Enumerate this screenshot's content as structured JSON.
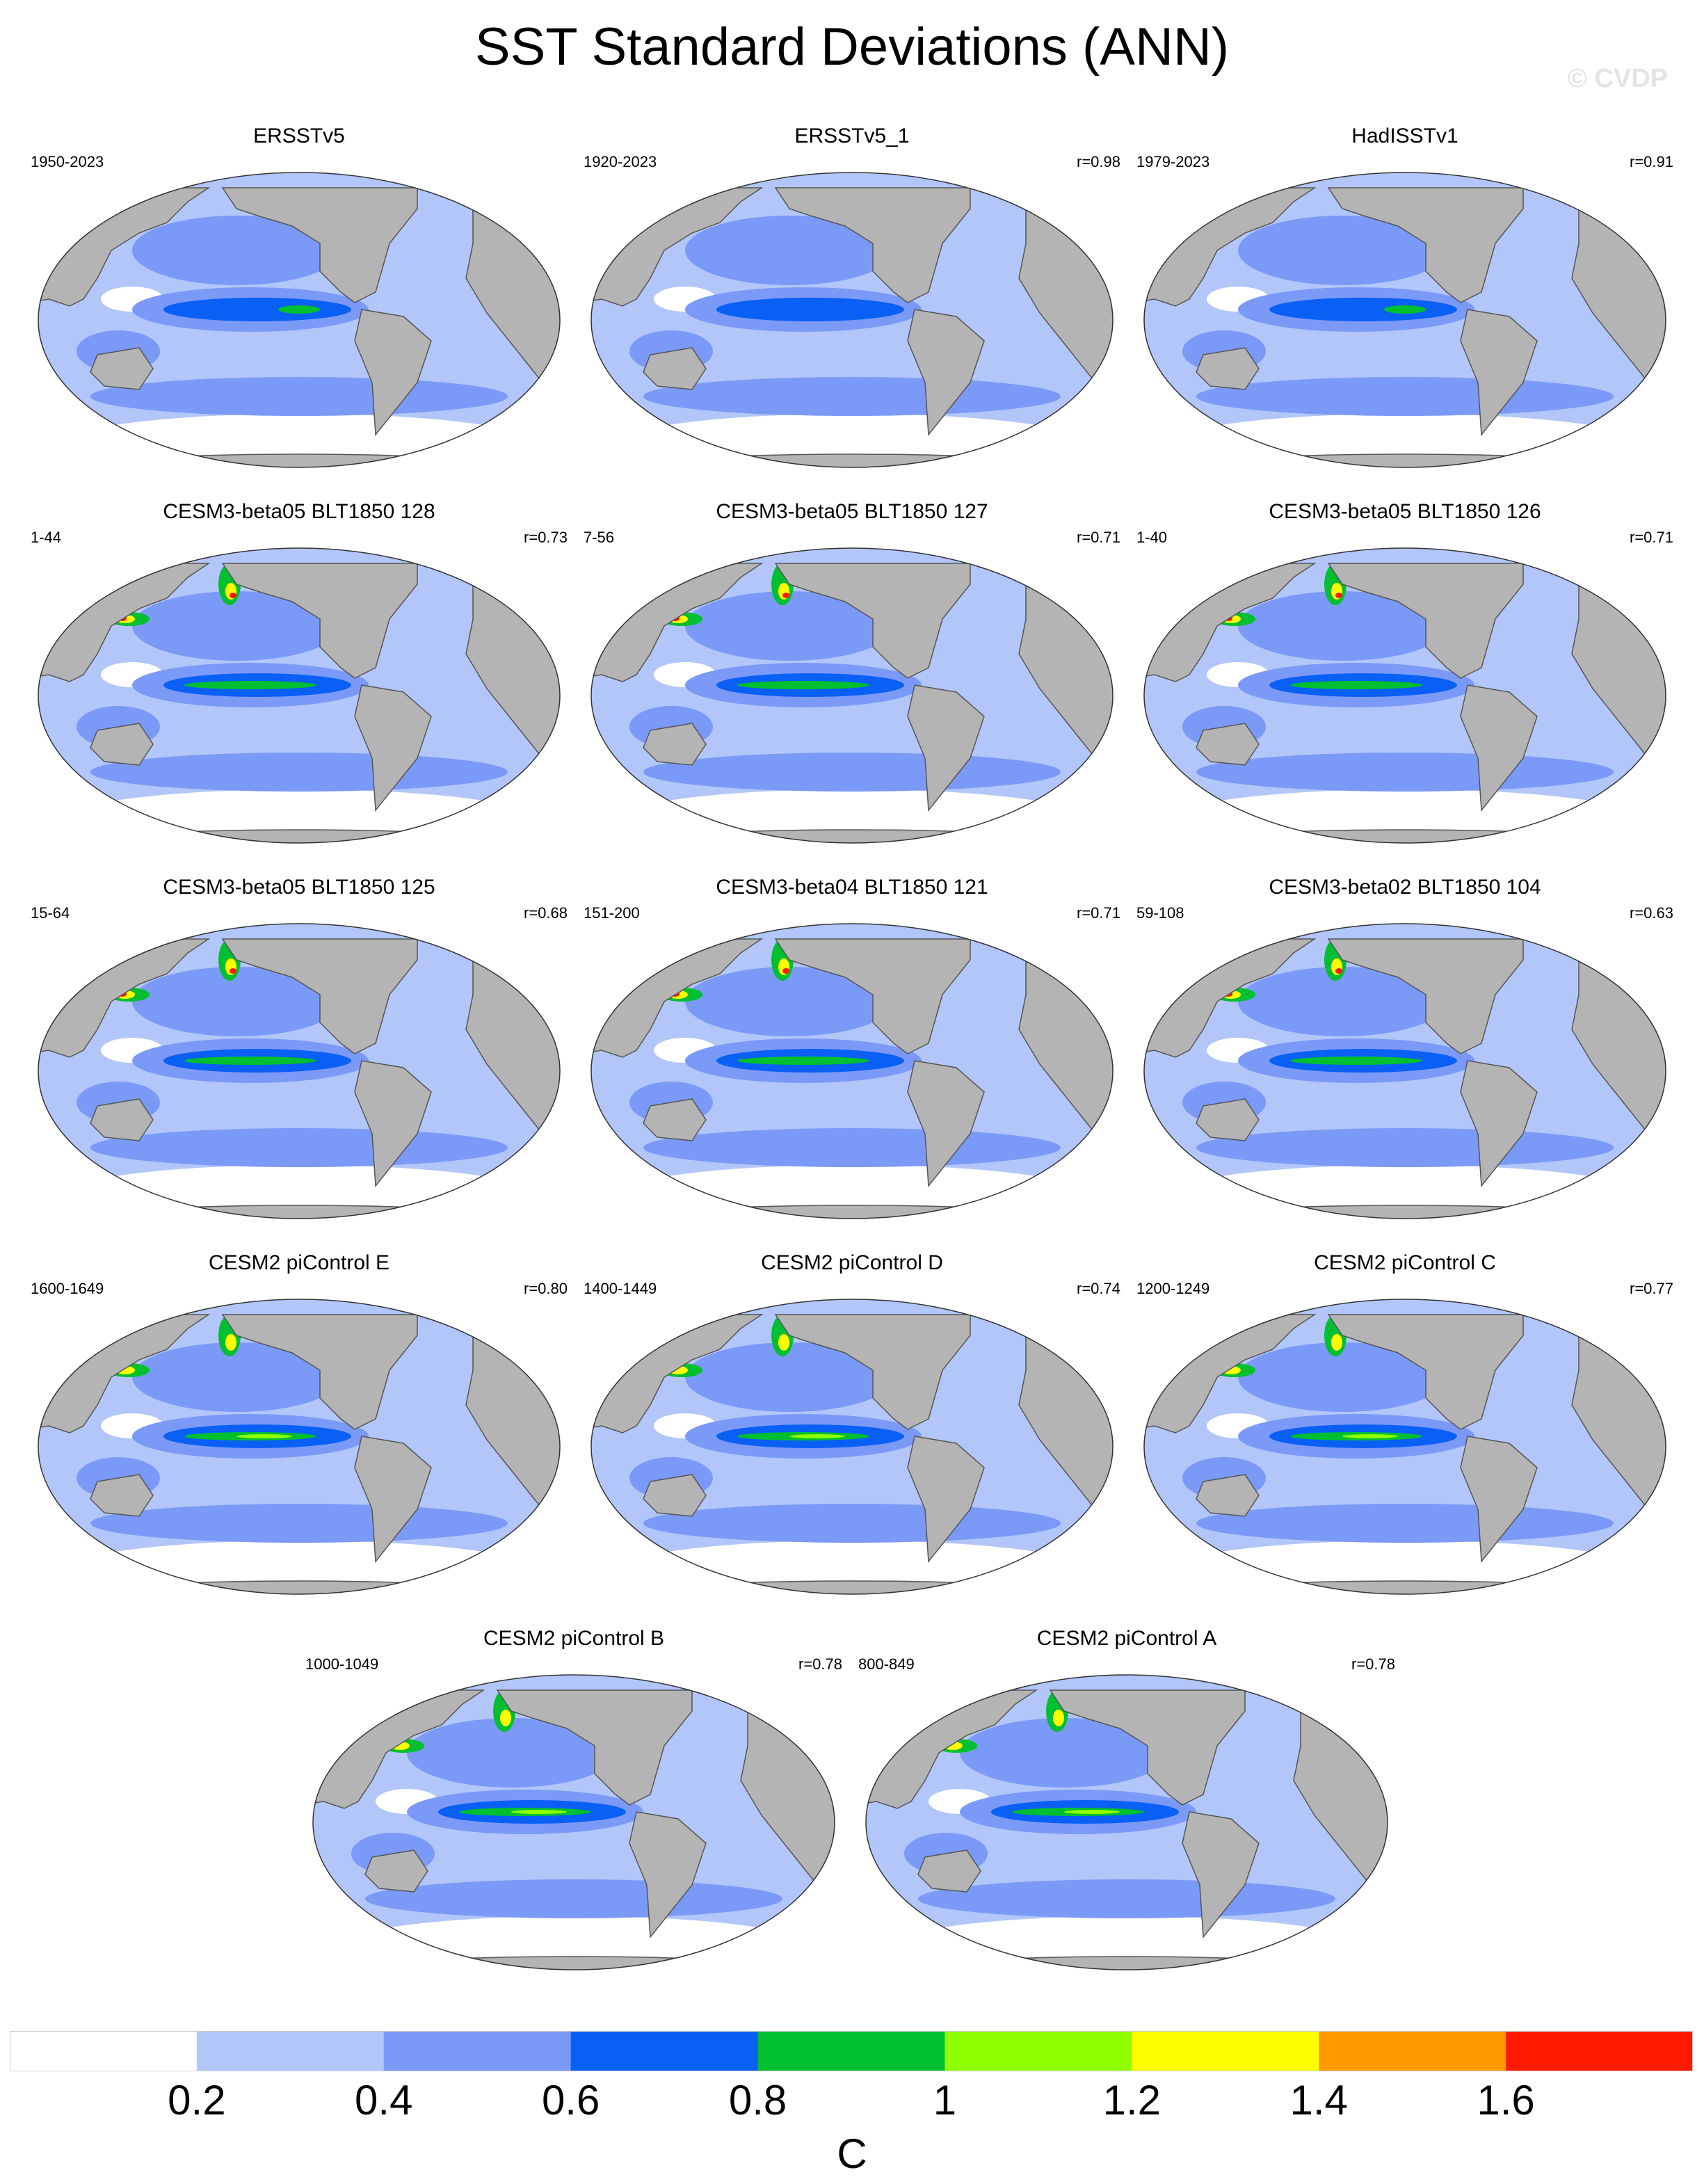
{
  "title": "SST Standard Deviations (ANN)",
  "watermark": "© CVDP",
  "colors": {
    "land": "#b4b4b4",
    "coast": "#555555",
    "bins": [
      "#ffffff",
      "#b3c6fa",
      "#7b9af7",
      "#0a5ff5",
      "#00bf30",
      "#8fff00",
      "#ffff00",
      "#ff9900",
      "#ff1a00"
    ]
  },
  "panels": [
    {
      "title": "ERSSTv5",
      "years": "1950-2023",
      "r": ""
    },
    {
      "title": "ERSSTv5_1",
      "years": "1920-2023",
      "r": "r=0.98"
    },
    {
      "title": "HadISSTv1",
      "years": "1979-2023",
      "r": "r=0.91"
    },
    {
      "title": "CESM3-beta05 BLT1850 128",
      "years": "1-44",
      "r": "r=0.73"
    },
    {
      "title": "CESM3-beta05 BLT1850 127",
      "years": "7-56",
      "r": "r=0.71"
    },
    {
      "title": "CESM3-beta05 BLT1850 126",
      "years": "1-40",
      "r": "r=0.71"
    },
    {
      "title": "CESM3-beta05 BLT1850 125",
      "years": "15-64",
      "r": "r=0.68"
    },
    {
      "title": "CESM3-beta04 BLT1850 121",
      "years": "151-200",
      "r": "r=0.71"
    },
    {
      "title": "CESM3-beta02 BLT1850 104",
      "years": "59-108",
      "r": "r=0.63"
    },
    {
      "title": "CESM2 piControl E",
      "years": "1600-1649",
      "r": "r=0.80"
    },
    {
      "title": "CESM2 piControl D",
      "years": "1400-1449",
      "r": "r=0.74"
    },
    {
      "title": "CESM2 piControl C",
      "years": "1200-1249",
      "r": "r=0.77"
    },
    {
      "title": "CESM2 piControl B",
      "years": "1000-1049",
      "r": "r=0.78"
    },
    {
      "title": "CESM2 piControl A",
      "years": "800-849",
      "r": "r=0.78"
    }
  ],
  "colorbar": {
    "ticks": [
      "0.2",
      "0.4",
      "0.6",
      "0.8",
      "1",
      "1.2",
      "1.4",
      "1.6"
    ],
    "units": "C"
  }
}
